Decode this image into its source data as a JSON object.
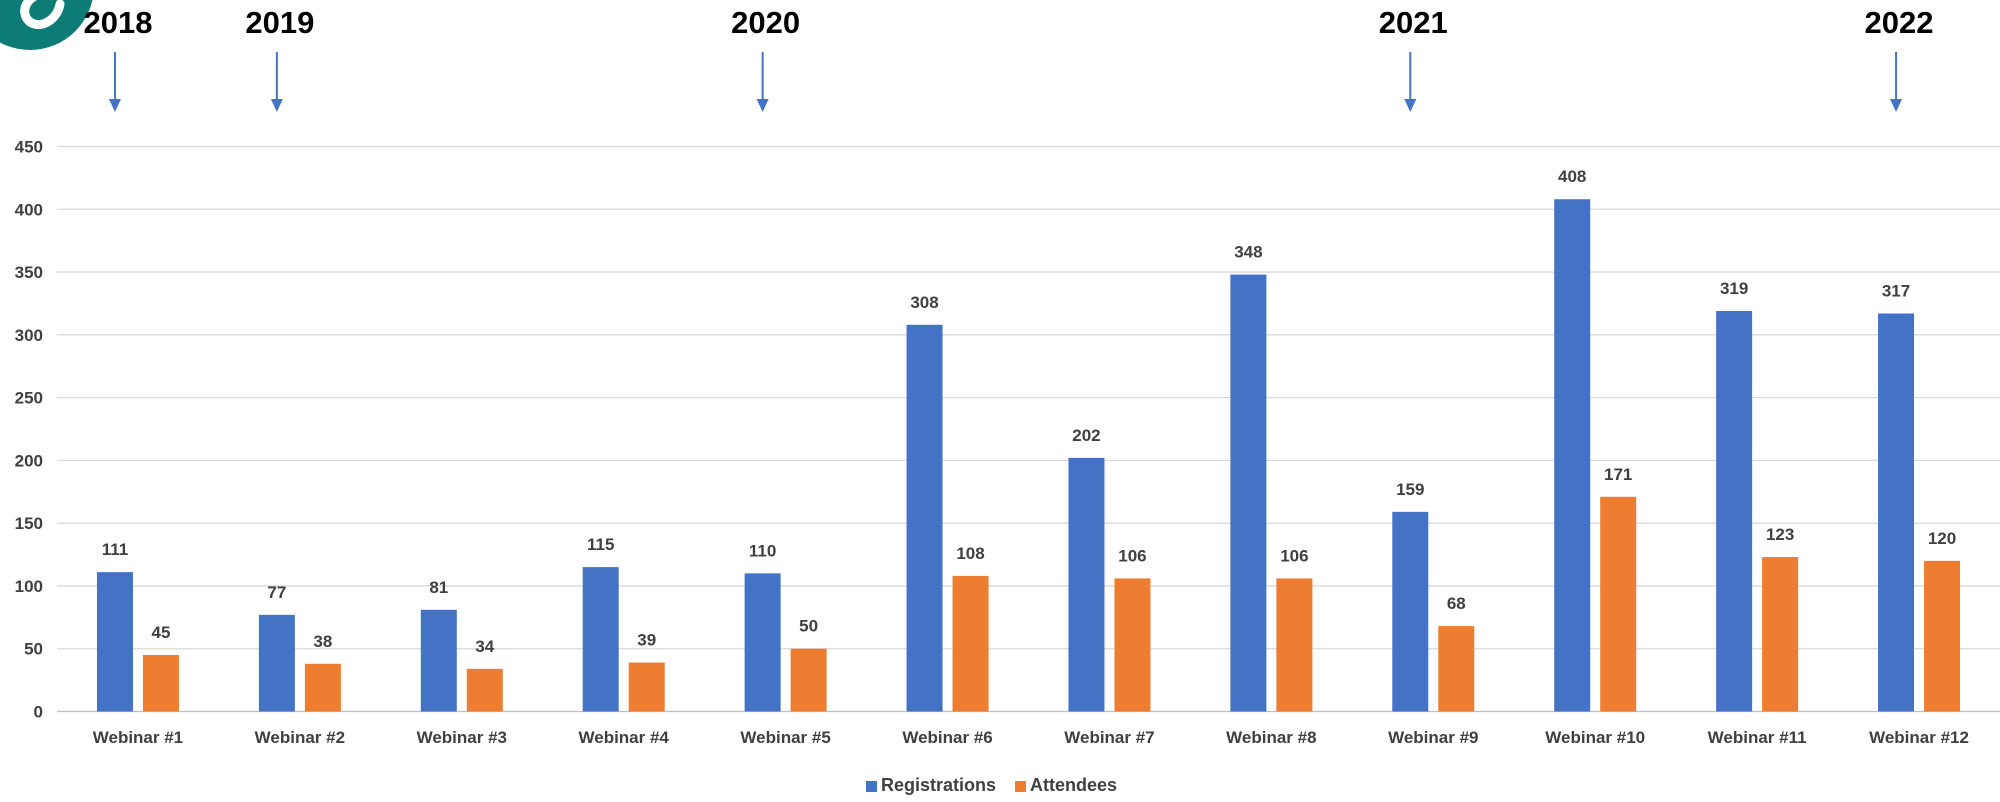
{
  "chart_data": {
    "type": "bar",
    "categories": [
      "Webinar #1",
      "Webinar #2",
      "Webinar #3",
      "Webinar #4",
      "Webinar #5",
      "Webinar #6",
      "Webinar #7",
      "Webinar #8",
      "Webinar #9",
      "Webinar #10",
      "Webinar #11",
      "Webinar #12"
    ],
    "series": [
      {
        "name": "Registrations",
        "color": "#4472C4",
        "values": [
          111,
          77,
          81,
          115,
          110,
          308,
          202,
          348,
          159,
          408,
          319,
          317
        ]
      },
      {
        "name": "Attendees",
        "color": "#ED7D31",
        "values": [
          45,
          38,
          34,
          39,
          50,
          108,
          106,
          106,
          68,
          171,
          123,
          120
        ]
      }
    ],
    "ylim": [
      0,
      450
    ],
    "yticks": [
      0,
      50,
      100,
      150,
      200,
      250,
      300,
      350,
      400,
      450
    ],
    "grid": true,
    "legend_position": "bottom-center",
    "year_markers": [
      {
        "label": "2018",
        "category": "Webinar #1"
      },
      {
        "label": "2019",
        "category": "Webinar #2"
      },
      {
        "label": "2020",
        "category": "Webinar #5"
      },
      {
        "label": "2021",
        "category": "Webinar #9"
      },
      {
        "label": "2022",
        "category": "Webinar #12"
      }
    ],
    "year_marker_color": "#4472C4",
    "logo_color": "#0E7C76"
  }
}
